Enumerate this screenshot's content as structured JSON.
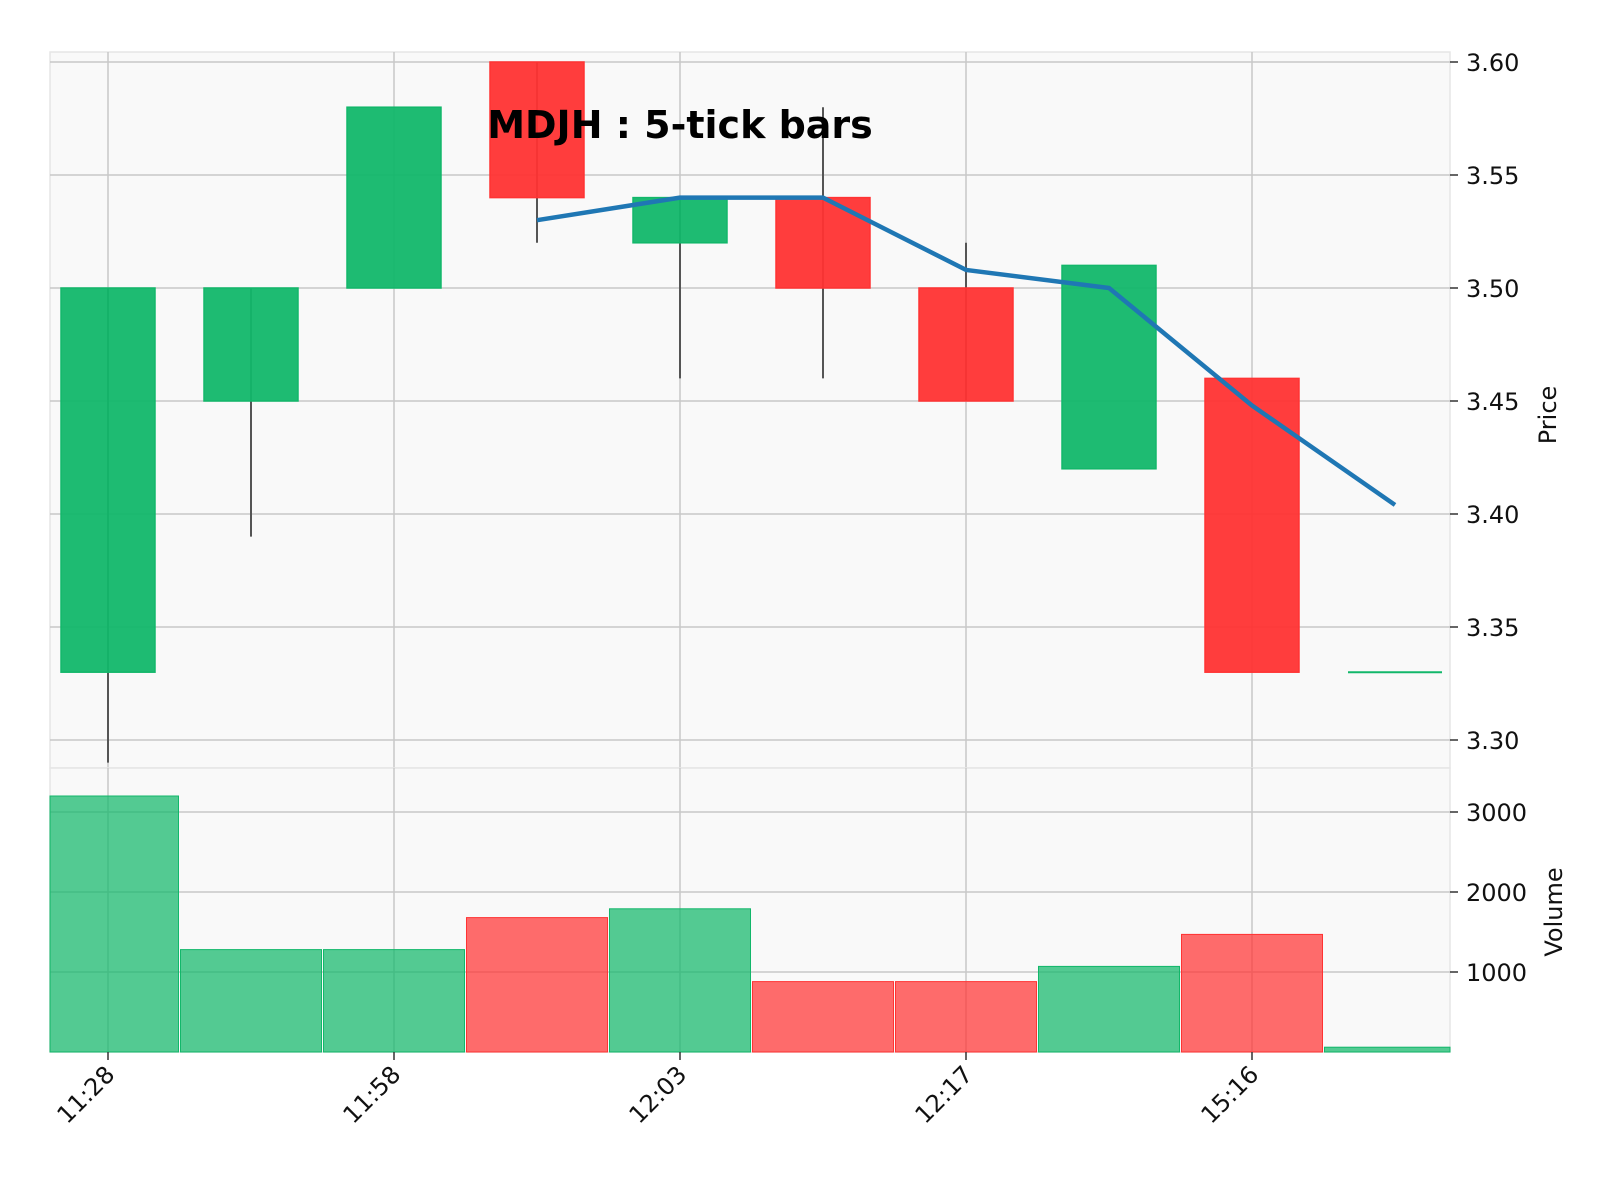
{
  "chart_data": {
    "type": "candlestick",
    "title": "MDJH : 5-tick bars",
    "x_tick_labels": [
      "11:28",
      "11:58",
      "12:03",
      "12:17",
      "15:16"
    ],
    "x_tick_indices": [
      0,
      2,
      4,
      6,
      8
    ],
    "price_axis": {
      "label": "Price",
      "ticks": [
        "3.30",
        "3.35",
        "3.40",
        "3.45",
        "3.50",
        "3.55",
        "3.60"
      ],
      "range": [
        3.29,
        3.6
      ]
    },
    "volume_axis": {
      "label": "Volume",
      "ticks": [
        "1000",
        "2000",
        "3000"
      ],
      "range": [
        0,
        3300
      ]
    },
    "colors": {
      "up": "#12b76a",
      "down": "#ff3333",
      "moving_average": "#1f77b4"
    },
    "candles": [
      {
        "open": 3.33,
        "high": 3.5,
        "low": 3.29,
        "close": 3.5,
        "volume": 3200
      },
      {
        "open": 3.45,
        "high": 3.5,
        "low": 3.39,
        "close": 3.5,
        "volume": 1280
      },
      {
        "open": 3.5,
        "high": 3.58,
        "low": 3.5,
        "close": 3.58,
        "volume": 1280
      },
      {
        "open": 3.6,
        "high": 3.6,
        "low": 3.52,
        "close": 3.54,
        "volume": 1680
      },
      {
        "open": 3.52,
        "high": 3.54,
        "low": 3.46,
        "close": 3.54,
        "volume": 1790
      },
      {
        "open": 3.54,
        "high": 3.58,
        "low": 3.46,
        "close": 3.5,
        "volume": 880
      },
      {
        "open": 3.5,
        "high": 3.52,
        "low": 3.45,
        "close": 3.45,
        "volume": 880
      },
      {
        "open": 3.42,
        "high": 3.51,
        "low": 3.42,
        "close": 3.51,
        "volume": 1070
      },
      {
        "open": 3.46,
        "high": 3.46,
        "low": 3.33,
        "close": 3.33,
        "volume": 1470
      },
      {
        "open": 3.33,
        "high": 3.33,
        "low": 3.33,
        "close": 3.33,
        "volume": 60
      }
    ],
    "moving_average": [
      null,
      null,
      null,
      3.53,
      3.54,
      3.54,
      3.508,
      3.5,
      3.448,
      3.404
    ]
  }
}
